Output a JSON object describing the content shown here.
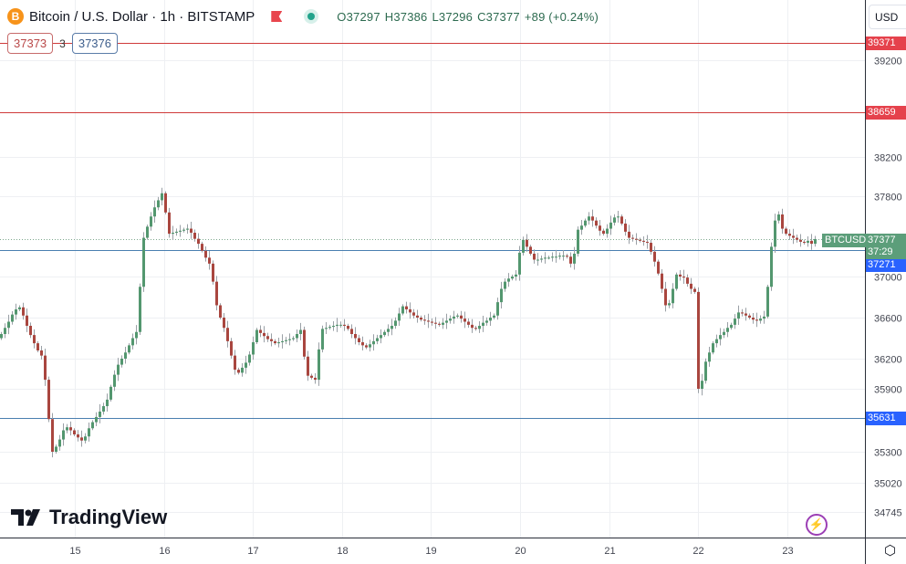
{
  "header": {
    "title": "Bitcoin / U.S. Dollar · 1h · BITSTAMP",
    "coin_symbol": "B",
    "ohlc": {
      "open": "O37297",
      "high": "H37386",
      "low": "L37296",
      "close": "C37377",
      "change": "+89 (+0.24%)"
    }
  },
  "order_panel": {
    "sell": "37373",
    "spread": "3",
    "buy": "37376"
  },
  "currency_select": "USD",
  "brand": "TradingView",
  "colors": {
    "up": "#53976f",
    "down": "#a9463f",
    "resistance": "#d03a3a",
    "support": "#4a7fb0",
    "price_tag": "#5c9e7a",
    "blue_tag": "#2962ff"
  },
  "chart_data": {
    "type": "candlestick",
    "symbol": "BTCUSD",
    "interval": "1h",
    "x_tick_labels": [
      "15",
      "16",
      "17",
      "18",
      "19",
      "20",
      "21",
      "22",
      "23"
    ],
    "y_tick_labels": [
      "39200",
      "38200",
      "37800",
      "37000",
      "36600",
      "36200",
      "35900",
      "35300",
      "35020",
      "34745"
    ],
    "ylim": [
      34600,
      39500
    ],
    "grid": true,
    "horizontal_lines": [
      {
        "value": 39371,
        "label": "39371",
        "color": "#d03a3a"
      },
      {
        "value": 38659,
        "label": "38659",
        "color": "#d03a3a"
      },
      {
        "value": 37271,
        "label": "37271",
        "color": "#4a7fb0"
      },
      {
        "value": 35631,
        "label": "35631",
        "color": "#4a7fb0"
      }
    ],
    "last_price": {
      "label": "BTCUSD",
      "value": "37377",
      "countdown": "37:29"
    },
    "closes": [
      36440,
      36500,
      36560,
      36630,
      36680,
      36700,
      36620,
      36520,
      36430,
      36350,
      36280,
      36230,
      35990,
      35620,
      35300,
      35350,
      35420,
      35510,
      35540,
      35510,
      35470,
      35440,
      35410,
      35450,
      35530,
      35590,
      35640,
      35690,
      35740,
      35800,
      35920,
      36040,
      36140,
      36200,
      36260,
      36330,
      36400,
      36460,
      36900,
      37390,
      37500,
      37600,
      37690,
      37760,
      37830,
      37640,
      37430,
      37440,
      37450,
      37460,
      37470,
      37480,
      37440,
      37380,
      37330,
      37260,
      37190,
      37130,
      36950,
      36720,
      36600,
      36500,
      36370,
      36230,
      36090,
      36060,
      36110,
      36160,
      36240,
      36360,
      36480,
      36450,
      36420,
      36390,
      36370,
      36350,
      36360,
      36370,
      36380,
      36390,
      36400,
      36440,
      36480,
      36220,
      36030,
      36010,
      35990,
      36290,
      36490,
      36500,
      36510,
      36520,
      36530,
      36530,
      36520,
      36490,
      36440,
      36400,
      36360,
      36330,
      36310,
      36340,
      36370,
      36400,
      36430,
      36460,
      36490,
      36520,
      36570,
      36640,
      36710,
      36680,
      36650,
      36620,
      36600,
      36580,
      36570,
      36560,
      36550,
      36540,
      36530,
      36550,
      36570,
      36590,
      36610,
      36620,
      36590,
      36560,
      36530,
      36500,
      36490,
      36520,
      36550,
      36570,
      36600,
      36620,
      36750,
      36880,
      36950,
      36980,
      37000,
      37020,
      37240,
      37370,
      37300,
      37230,
      37170,
      37170,
      37180,
      37190,
      37190,
      37200,
      37200,
      37210,
      37210,
      37200,
      37130,
      37230,
      37470,
      37510,
      37560,
      37600,
      37560,
      37510,
      37460,
      37430,
      37480,
      37540,
      37590,
      37600,
      37530,
      37450,
      37390,
      37380,
      37370,
      37360,
      37350,
      37340,
      37250,
      37150,
      37030,
      36880,
      36720,
      36740,
      36880,
      37020,
      37000,
      36990,
      36930,
      36880,
      36850,
      35900,
      35980,
      36170,
      36260,
      36350,
      36390,
      36430,
      36460,
      36500,
      36530,
      36590,
      36650,
      36640,
      36620,
      36600,
      36580,
      36570,
      36590,
      36610,
      36900,
      37300,
      37560,
      37620,
      37480,
      37430,
      37410,
      37390,
      37370,
      37350,
      37340,
      37360,
      37330,
      37377
    ]
  }
}
